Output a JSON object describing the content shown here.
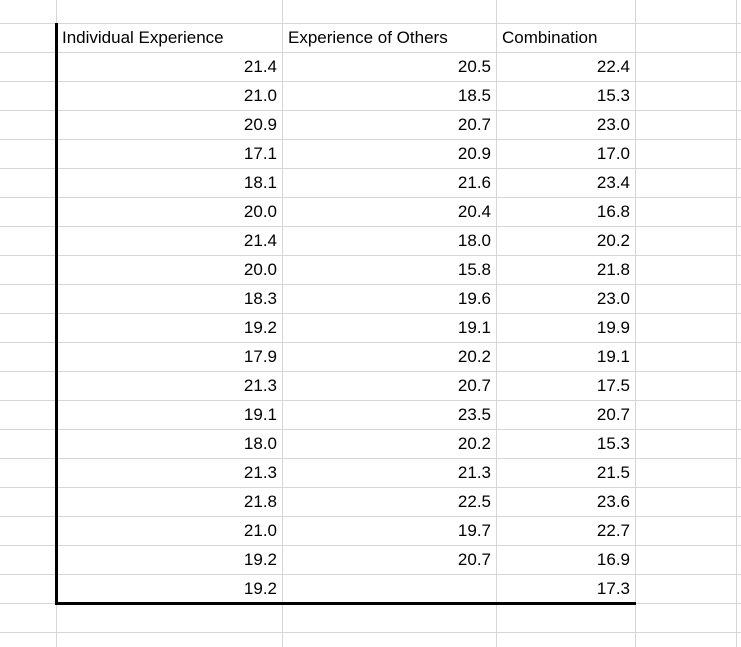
{
  "sheet": {
    "columns": [
      {
        "label": "Individual Experience"
      },
      {
        "label": "Experience of Others"
      },
      {
        "label": "Combination"
      }
    ],
    "rows": [
      [
        "21.4",
        "20.5",
        "22.4"
      ],
      [
        "21.0",
        "18.5",
        "15.3"
      ],
      [
        "20.9",
        "20.7",
        "23.0"
      ],
      [
        "17.1",
        "20.9",
        "17.0"
      ],
      [
        "18.1",
        "21.6",
        "23.4"
      ],
      [
        "20.0",
        "20.4",
        "16.8"
      ],
      [
        "21.4",
        "18.0",
        "20.2"
      ],
      [
        "20.0",
        "15.8",
        "21.8"
      ],
      [
        "18.3",
        "19.6",
        "23.0"
      ],
      [
        "19.2",
        "19.1",
        "19.9"
      ],
      [
        "17.9",
        "20.2",
        "19.1"
      ],
      [
        "21.3",
        "20.7",
        "17.5"
      ],
      [
        "19.1",
        "23.5",
        "20.7"
      ],
      [
        "18.0",
        "20.2",
        "15.3"
      ],
      [
        "21.3",
        "21.3",
        "21.5"
      ],
      [
        "21.8",
        "22.5",
        "23.6"
      ],
      [
        "21.0",
        "19.7",
        "22.7"
      ],
      [
        "19.2",
        "20.7",
        "16.9"
      ],
      [
        "19.2",
        "",
        "17.3"
      ]
    ]
  },
  "colors": {
    "gridline": "#d6d6d6",
    "border": "#000000",
    "text": "#000000",
    "background": "#ffffff"
  }
}
